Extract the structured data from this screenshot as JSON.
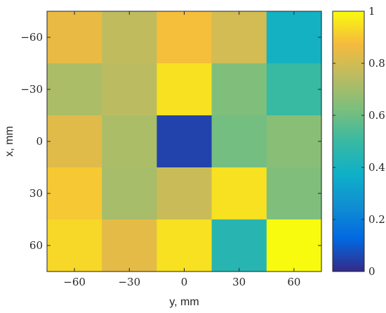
{
  "chart_data": {
    "type": "heatmap",
    "title": "",
    "xlabel": "y, mm",
    "ylabel": "x, mm",
    "x": [
      -60,
      -30,
      0,
      30,
      60
    ],
    "y": [
      -60,
      -30,
      0,
      30,
      60
    ],
    "x_tick_labels": [
      "−60",
      "−30",
      "0",
      "30",
      "60"
    ],
    "y_tick_labels": [
      "−60",
      "−30",
      "0",
      "30",
      "60"
    ],
    "values": [
      [
        0.85,
        0.76,
        0.88,
        0.8,
        0.39
      ],
      [
        0.72,
        0.75,
        0.95,
        0.63,
        0.5
      ],
      [
        0.83,
        0.72,
        0.05,
        0.61,
        0.65
      ],
      [
        0.9,
        0.71,
        0.78,
        0.95,
        0.63
      ],
      [
        0.93,
        0.84,
        0.95,
        0.45,
        1.0
      ]
    ],
    "colorbar": {
      "colormap": "parula",
      "range": [
        0,
        1
      ],
      "ticks": [
        0,
        0.2,
        0.4,
        0.6,
        0.8,
        1
      ],
      "tick_labels": [
        "0",
        "0.2",
        "0.4",
        "0.6",
        "0.8",
        "1"
      ]
    },
    "grid": false
  }
}
